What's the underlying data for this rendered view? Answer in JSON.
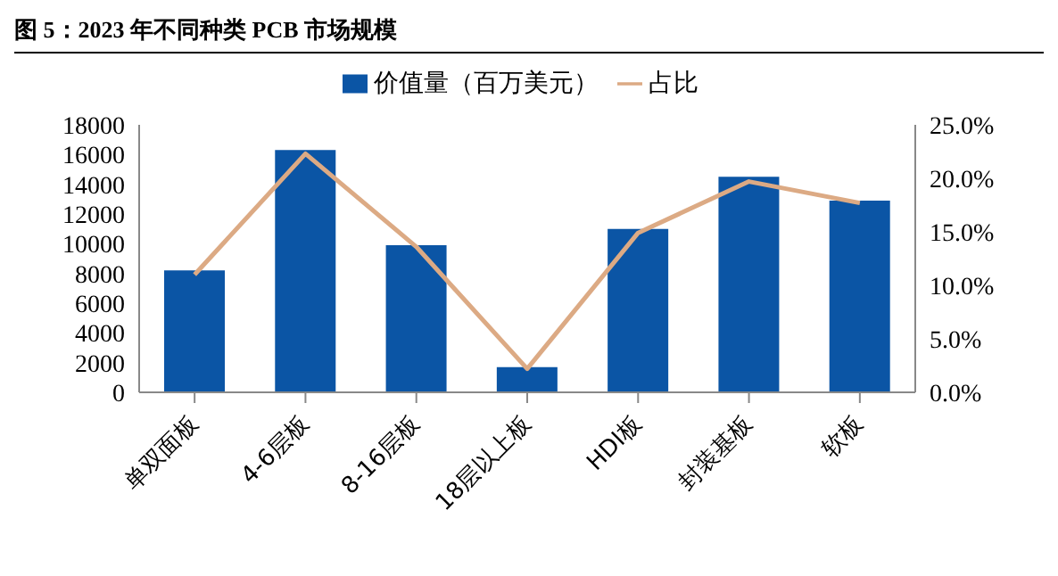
{
  "chart_data": {
    "type": "bar",
    "title": "图 5：2023 年不同种类 PCB 市场规模",
    "categories": [
      "单双面板",
      "4-6层板",
      "8-16层板",
      "18层以上板",
      "HDI板",
      "封装基板",
      "软板"
    ],
    "series": [
      {
        "name": "价值量（百万美元）",
        "color": "#0b55a5",
        "values": [
          8200,
          16300,
          9900,
          1700,
          11000,
          14500,
          12900
        ]
      },
      {
        "name": "占比",
        "type": "line",
        "axis": "y2",
        "color": "#dcaa84",
        "values": [
          11.0,
          22.3,
          13.6,
          2.2,
          14.9,
          19.7,
          17.7
        ]
      }
    ],
    "ylim": [
      0,
      18000
    ],
    "yticks": [
      0,
      2000,
      4000,
      6000,
      8000,
      10000,
      12000,
      14000,
      16000,
      18000
    ],
    "y2lim": [
      0,
      25
    ],
    "y2ticks": [
      {
        "value": 0,
        "label": "0.0%"
      },
      {
        "value": 5,
        "label": "5.0%"
      },
      {
        "value": 10,
        "label": "10.0%"
      },
      {
        "value": 15,
        "label": "15.0%"
      },
      {
        "value": 20,
        "label": "20.0%"
      },
      {
        "value": 25,
        "label": "25.0%"
      }
    ],
    "legend": "top",
    "marker": "none"
  }
}
